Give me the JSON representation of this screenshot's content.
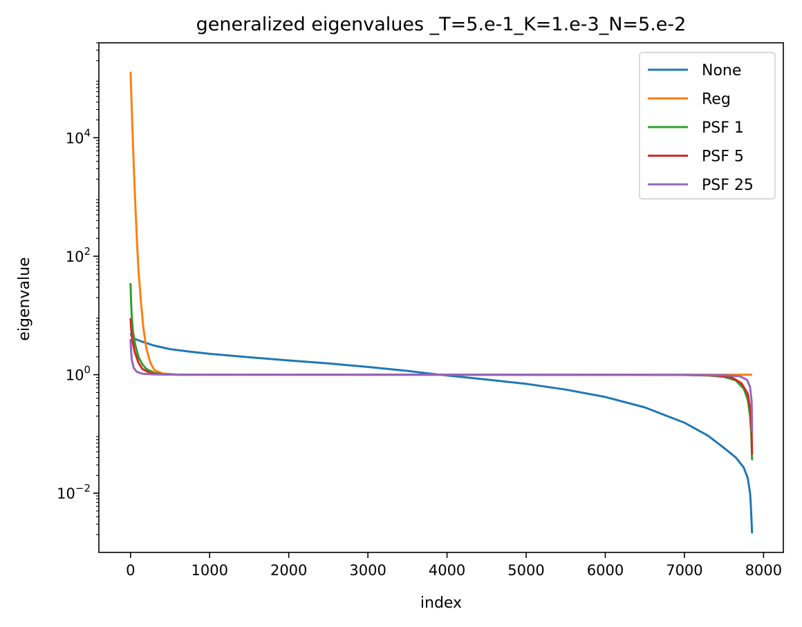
{
  "chart_data": {
    "type": "line",
    "title": "generalized eigenvalues _T=5.e-1_K=1.e-3_N=5.e-2",
    "xlabel": "index",
    "ylabel": "eigenvalue",
    "xscale": "linear",
    "yscale": "log",
    "xlim": [
      -400,
      8250
    ],
    "ylim": [
      0.001,
      400000
    ],
    "xticks": [
      0,
      1000,
      2000,
      3000,
      4000,
      5000,
      6000,
      7000,
      8000
    ],
    "xtick_labels": [
      "0",
      "1000",
      "2000",
      "3000",
      "4000",
      "5000",
      "6000",
      "7000",
      "8000"
    ],
    "yticks": [
      {
        "value": 0.01,
        "base": "10",
        "exp": "−2"
      },
      {
        "value": 1,
        "base": "10",
        "exp": "0"
      },
      {
        "value": 100,
        "base": "10",
        "exp": "2"
      },
      {
        "value": 10000,
        "base": "10",
        "exp": "4"
      }
    ],
    "grid": false,
    "legend_position": "top-right",
    "series": [
      {
        "name": "None",
        "color": "#1f77b4",
        "points": [
          [
            0,
            5.0
          ],
          [
            20,
            4.3
          ],
          [
            60,
            4.0
          ],
          [
            150,
            3.6
          ],
          [
            300,
            3.1
          ],
          [
            500,
            2.7
          ],
          [
            750,
            2.45
          ],
          [
            1000,
            2.25
          ],
          [
            1500,
            1.97
          ],
          [
            2000,
            1.74
          ],
          [
            2500,
            1.55
          ],
          [
            3000,
            1.35
          ],
          [
            3500,
            1.16
          ],
          [
            3800,
            1.04
          ],
          [
            4000,
            0.97
          ],
          [
            4500,
            0.83
          ],
          [
            5000,
            0.7
          ],
          [
            5500,
            0.56
          ],
          [
            6000,
            0.42
          ],
          [
            6500,
            0.28
          ],
          [
            7000,
            0.155
          ],
          [
            7300,
            0.093
          ],
          [
            7500,
            0.058
          ],
          [
            7650,
            0.04
          ],
          [
            7750,
            0.027
          ],
          [
            7800,
            0.018
          ],
          [
            7830,
            0.01
          ],
          [
            7840,
            0.006
          ],
          [
            7850,
            0.003
          ],
          [
            7855,
            0.0021
          ]
        ]
      },
      {
        "name": "Reg",
        "color": "#ff7f0e",
        "points": [
          [
            0,
            130000
          ],
          [
            20,
            20000
          ],
          [
            40,
            3500
          ],
          [
            60,
            800
          ],
          [
            80,
            200
          ],
          [
            100,
            60
          ],
          [
            130,
            18
          ],
          [
            160,
            6.5
          ],
          [
            200,
            2.8
          ],
          [
            250,
            1.6
          ],
          [
            300,
            1.2
          ],
          [
            400,
            1.05
          ],
          [
            600,
            1.0
          ],
          [
            1000,
            1.0
          ],
          [
            4000,
            1.0
          ],
          [
            7000,
            1.0
          ],
          [
            7855,
            1.0
          ]
        ]
      },
      {
        "name": "PSF 1",
        "color": "#2ca02c",
        "points": [
          [
            0,
            35
          ],
          [
            5,
            20
          ],
          [
            15,
            10
          ],
          [
            30,
            5.5
          ],
          [
            60,
            3.2
          ],
          [
            100,
            2.0
          ],
          [
            150,
            1.5
          ],
          [
            200,
            1.25
          ],
          [
            300,
            1.08
          ],
          [
            400,
            1.02
          ],
          [
            600,
            1.0
          ],
          [
            4000,
            1.0
          ],
          [
            7000,
            0.99
          ],
          [
            7300,
            0.97
          ],
          [
            7500,
            0.92
          ],
          [
            7650,
            0.8
          ],
          [
            7750,
            0.58
          ],
          [
            7800,
            0.38
          ],
          [
            7830,
            0.2
          ],
          [
            7845,
            0.1
          ],
          [
            7855,
            0.036
          ]
        ]
      },
      {
        "name": "PSF 5",
        "color": "#d62728",
        "points": [
          [
            0,
            9.0
          ],
          [
            8,
            6.0
          ],
          [
            20,
            4.0
          ],
          [
            50,
            2.5
          ],
          [
            100,
            1.6
          ],
          [
            150,
            1.25
          ],
          [
            250,
            1.06
          ],
          [
            400,
            1.01
          ],
          [
            600,
            1.0
          ],
          [
            4000,
            1.0
          ],
          [
            7000,
            0.99
          ],
          [
            7400,
            0.97
          ],
          [
            7600,
            0.9
          ],
          [
            7720,
            0.72
          ],
          [
            7800,
            0.48
          ],
          [
            7835,
            0.25
          ],
          [
            7850,
            0.11
          ],
          [
            7855,
            0.045
          ]
        ]
      },
      {
        "name": "PSF 25",
        "color": "#9467bd",
        "points": [
          [
            0,
            4.0
          ],
          [
            5,
            2.8
          ],
          [
            15,
            1.8
          ],
          [
            40,
            1.3
          ],
          [
            80,
            1.12
          ],
          [
            150,
            1.04
          ],
          [
            300,
            1.01
          ],
          [
            600,
            1.0
          ],
          [
            4000,
            1.0
          ],
          [
            7000,
            0.995
          ],
          [
            7500,
            0.98
          ],
          [
            7700,
            0.94
          ],
          [
            7790,
            0.82
          ],
          [
            7830,
            0.62
          ],
          [
            7850,
            0.35
          ],
          [
            7855,
            0.11
          ]
        ]
      }
    ]
  }
}
